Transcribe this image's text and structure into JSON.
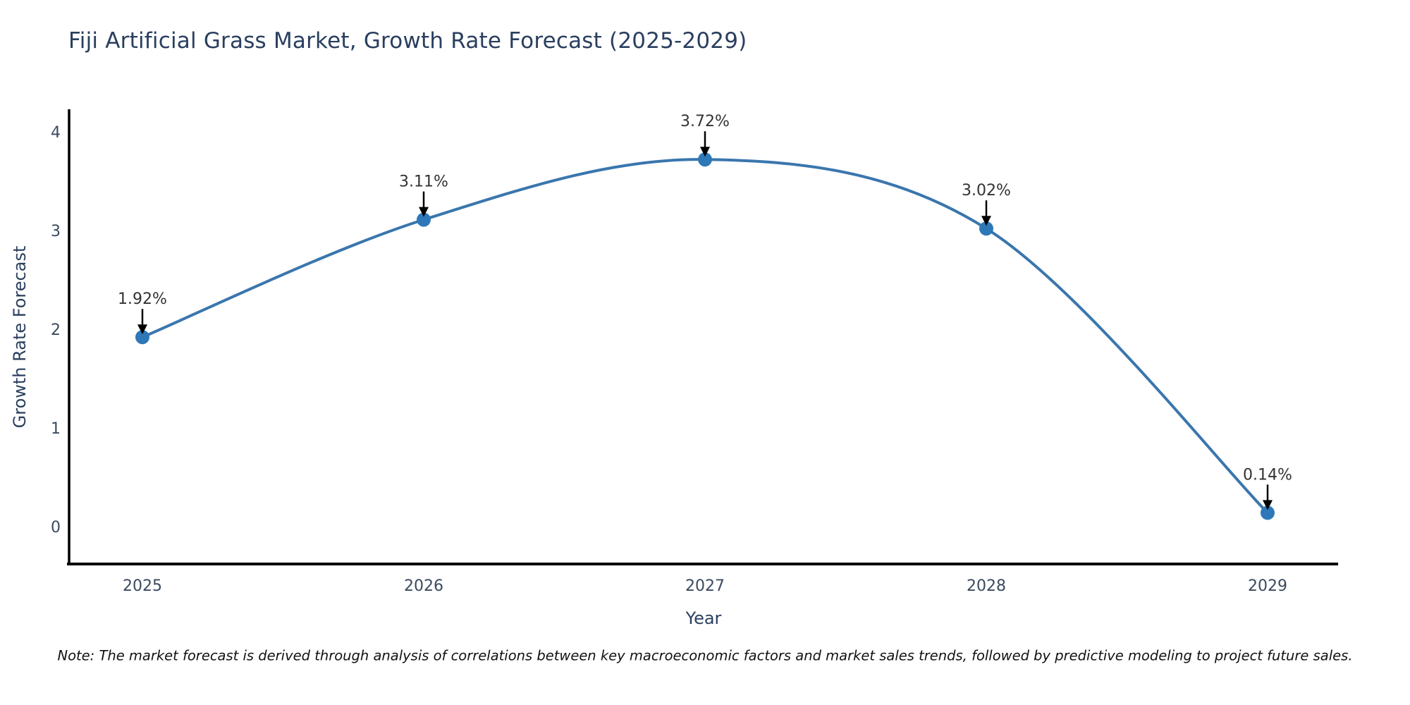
{
  "title": "Fiji Artificial Grass Market, Growth Rate Forecast (2025-2029)",
  "note": "Note: The market forecast is derived through analysis of correlations between key macroeconomic factors and market sales trends, followed by predictive modeling to project future sales.",
  "chart_data": {
    "type": "line",
    "title": "Fiji Artificial Grass Market, Growth Rate Forecast (2025-2029)",
    "xlabel": "Year",
    "ylabel": "Growth Rate Forecast",
    "categories": [
      "2025",
      "2026",
      "2027",
      "2028",
      "2029"
    ],
    "values": [
      1.92,
      3.11,
      3.72,
      3.02,
      0.14
    ],
    "labels": [
      "1.92%",
      "3.11%",
      "3.72%",
      "3.02%",
      "0.14%"
    ],
    "yticks": [
      "0",
      "1",
      "2",
      "3",
      "4"
    ],
    "ylim": [
      -0.38,
      4.23
    ],
    "line_shape": "spline",
    "grid": false,
    "legend": "none",
    "colors": {
      "line": "#3a76ad",
      "marker": "#2e78b8",
      "axis": "#000000",
      "arrow": "#000000",
      "title": "#2a3f5f",
      "tick": "#3b4a5f",
      "annotation": "#333333"
    }
  }
}
